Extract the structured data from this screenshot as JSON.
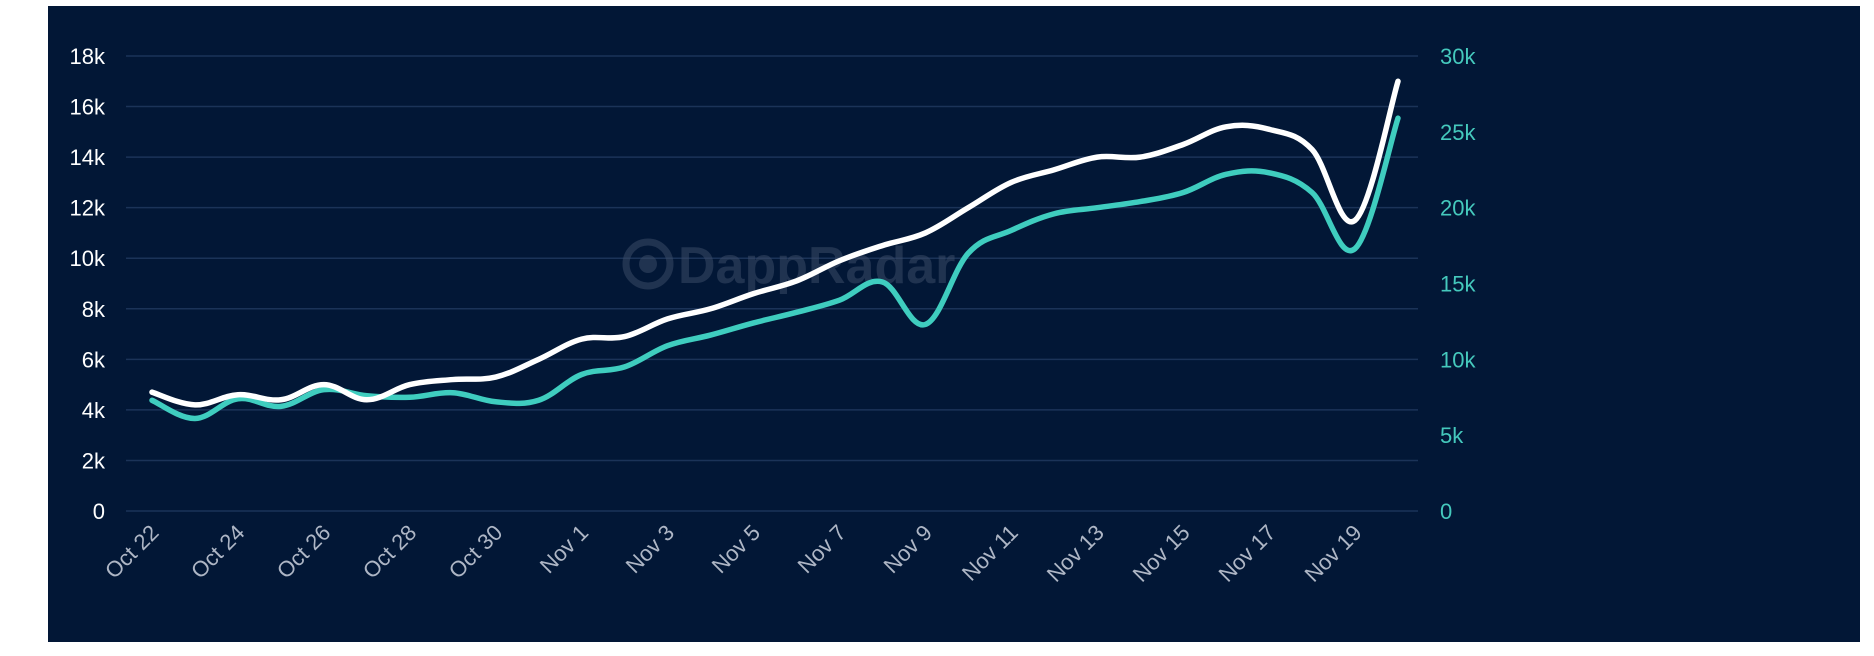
{
  "watermark": "DappRadar",
  "colors": {
    "background": "#021736",
    "series_white": "#ffffff",
    "series_teal": "#3fcdbf",
    "grid": "#1b3358"
  },
  "chart_data": {
    "type": "line",
    "x": [
      "Oct 22",
      "Oct 23",
      "Oct 24",
      "Oct 25",
      "Oct 26",
      "Oct 27",
      "Oct 28",
      "Oct 29",
      "Oct 30",
      "Oct 31",
      "Nov 1",
      "Nov 2",
      "Nov 3",
      "Nov 4",
      "Nov 5",
      "Nov 6",
      "Nov 7",
      "Nov 8",
      "Nov 9",
      "Nov 10",
      "Nov 11",
      "Nov 12",
      "Nov 13",
      "Nov 14",
      "Nov 15",
      "Nov 16",
      "Nov 17",
      "Nov 18",
      "Nov 19",
      "Nov 20"
    ],
    "x_tick_labels": [
      "Oct 22",
      "Oct 24",
      "Oct 26",
      "Oct 28",
      "Oct 30",
      "Nov 1",
      "Nov 3",
      "Nov 5",
      "Nov 7",
      "Nov 9",
      "Nov 11",
      "Nov 13",
      "Nov 15",
      "Nov 17",
      "Nov 19"
    ],
    "left_axis": {
      "ticks": [
        "0",
        "2k",
        "4k",
        "6k",
        "8k",
        "10k",
        "12k",
        "14k",
        "16k",
        "18k"
      ],
      "ylim": [
        0,
        18000
      ],
      "color": "#ffffff"
    },
    "right_axis": {
      "ticks": [
        "0",
        "5k",
        "10k",
        "15k",
        "20k",
        "25k",
        "30k"
      ],
      "ylim": [
        0,
        30000
      ],
      "color": "#45c9bd"
    },
    "series": [
      {
        "axis": "left",
        "color": "#ffffff",
        "values": [
          4700,
          4200,
          4600,
          4400,
          5000,
          4400,
          5000,
          5200,
          5300,
          6000,
          6800,
          6900,
          7600,
          8000,
          8600,
          9100,
          9900,
          10500,
          11000,
          12000,
          13000,
          13500,
          14000,
          14000,
          14500,
          15200,
          15100,
          14300,
          11500,
          17000
        ]
      },
      {
        "axis": "right",
        "color": "#3fcdbf",
        "values": [
          7300,
          6100,
          7400,
          6900,
          8000,
          7600,
          7500,
          7800,
          7200,
          7300,
          9000,
          9500,
          10900,
          11600,
          12400,
          13100,
          13900,
          15100,
          12300,
          17000,
          18500,
          19600,
          20000,
          20400,
          21000,
          22200,
          22300,
          21000,
          17300,
          25900
        ]
      }
    ]
  }
}
